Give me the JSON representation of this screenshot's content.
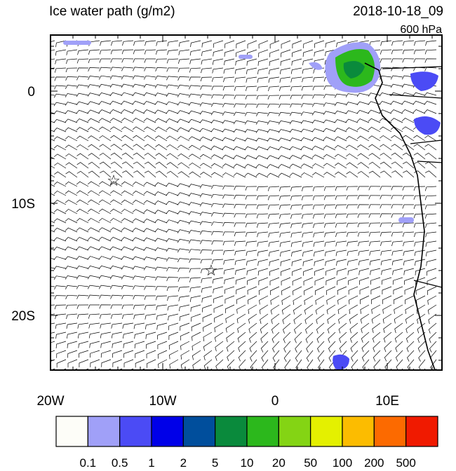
{
  "header": {
    "title": "Ice water path (g/m2)",
    "date": "2018-10-18_09",
    "level": "600 hPa"
  },
  "map": {
    "lon_labels": [
      "20W",
      "10W",
      "0",
      "10E"
    ],
    "lat_labels": [
      "0",
      "10S",
      "20S"
    ]
  },
  "colorbar": {
    "colors": [
      "#fdfdf8",
      "#a0a0f8",
      "#4b4bf5",
      "#0000e8",
      "#004e9c",
      "#0a8a3c",
      "#2cb81c",
      "#84d414",
      "#e4f000",
      "#fcbc00",
      "#fc6a00",
      "#f01a00"
    ],
    "labels": [
      "0.1",
      "0.5",
      "1",
      "2",
      "5",
      "10",
      "20",
      "50",
      "100",
      "200",
      "500"
    ]
  }
}
